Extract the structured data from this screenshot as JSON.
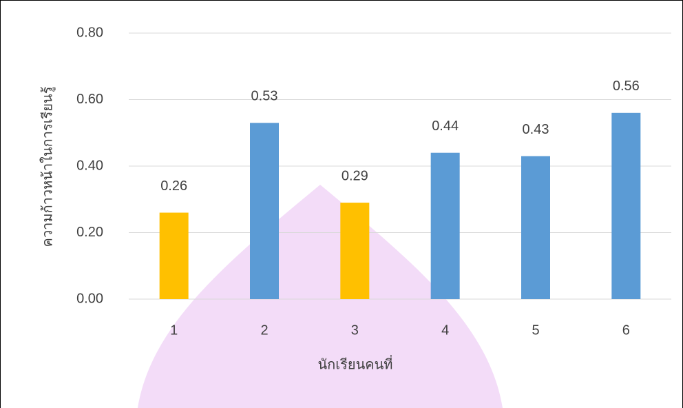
{
  "chart_data": {
    "type": "bar",
    "x_label": "นักเรียนคนที่",
    "y_label": "ความก้าวหน้าในการเรียนรู้",
    "categories": [
      "1",
      "2",
      "3",
      "4",
      "5",
      "6"
    ],
    "values": [
      0.26,
      0.53,
      0.29,
      0.44,
      0.43,
      0.56
    ],
    "colors": [
      "#ffc000",
      "#5b9bd5",
      "#ffc000",
      "#5b9bd5",
      "#5b9bd5",
      "#5b9bd5"
    ],
    "ylim": [
      0,
      0.8
    ],
    "yticks": [
      {
        "value": 0,
        "label": "0.00"
      },
      {
        "value": 0.2,
        "label": "0.20"
      },
      {
        "value": 0.4,
        "label": "0.40"
      },
      {
        "value": 0.6,
        "label": "0.60"
      },
      {
        "value": 0.8,
        "label": "0.80"
      }
    ],
    "grid": true
  }
}
